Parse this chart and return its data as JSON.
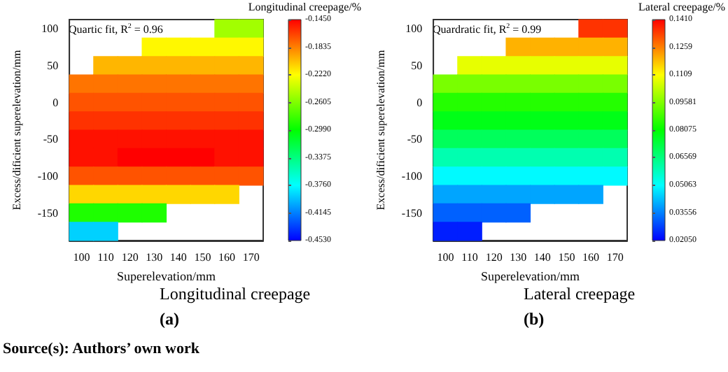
{
  "chart_data": [
    {
      "type": "heatmap",
      "title": "Longitudinal creepage",
      "subtitle": "(a)",
      "xlabel": "Superelevation/mm",
      "ylabel": "Excess/dificient superelevation/mm",
      "clabel": "Longitudinal creepage/%",
      "annotations": [
        "Quartic fit, R$^{2}$ = 0.96",
        "Source(s): Authors’ own work"
      ],
      "categories": [
        "100",
        "110",
        "120",
        "130",
        "140",
        "150",
        "160",
        "170"
      ],
      "y_categories": [
        "100",
        null,
        "50",
        null,
        "0",
        null,
        "-50",
        null,
        "-100",
        null,
        "-150",
        null
      ],
      "cells": [
        [
          null,
          null,
          null,
          null,
          null,
          null,
          -0.25,
          -0.25
        ],
        [
          null,
          null,
          null,
          -0.22,
          -0.22,
          -0.22,
          -0.22,
          -0.22
        ],
        [
          null,
          -0.2,
          -0.2,
          -0.2,
          -0.2,
          -0.2,
          -0.2,
          -0.2
        ],
        [
          -0.18,
          -0.18,
          -0.18,
          -0.18,
          -0.18,
          -0.18,
          -0.18,
          -0.18
        ],
        [
          -0.17,
          -0.17,
          -0.17,
          -0.17,
          -0.17,
          -0.17,
          -0.17,
          -0.17
        ],
        [
          -0.16,
          -0.16,
          -0.16,
          -0.16,
          -0.16,
          -0.16,
          -0.16,
          -0.16
        ],
        [
          -0.15,
          -0.15,
          -0.15,
          -0.15,
          -0.15,
          -0.15,
          -0.15,
          -0.15
        ],
        [
          -0.15,
          -0.15,
          -0.145,
          -0.145,
          -0.145,
          -0.145,
          -0.15,
          -0.15
        ],
        [
          -0.17,
          -0.17,
          -0.17,
          -0.17,
          -0.17,
          -0.17,
          -0.17,
          -0.17
        ],
        [
          -0.21,
          -0.21,
          -0.21,
          -0.21,
          -0.21,
          -0.21,
          -0.21,
          null
        ],
        [
          -0.29,
          -0.29,
          -0.29,
          -0.29,
          null,
          null,
          null,
          null
        ],
        [
          -0.39,
          -0.39,
          null,
          null,
          null,
          null,
          null,
          null
        ]
      ],
      "clim": [
        -0.453,
        -0.145
      ],
      "cticks": [
        {
          "value": -0.145,
          "label": "-0.1450"
        },
        -0.1835,
        {
          "value": -0.222,
          "label": "-0.2220"
        },
        -0.2605,
        {
          "value": -0.299,
          "label": "-0.2990"
        },
        -0.3375,
        {
          "value": -0.376,
          "label": "-0.3760"
        },
        -0.4145,
        {
          "value": -0.453,
          "label": "-0.4530"
        }
      ]
    },
    {
      "type": "heatmap",
      "title": "Lateral creepage",
      "subtitle": "(b)",
      "xlabel": "Superelevation/mm",
      "ylabel": "Excess/dificient superelevation/mm",
      "clabel": "Lateral creepage/%",
      "annotations": [
        "Quardratic fit, R$^{2}$ = 0.99"
      ],
      "categories": [
        "100",
        "110",
        "120",
        "130",
        "140",
        "150",
        "160",
        "170"
      ],
      "y_categories": [
        "100",
        null,
        "50",
        null,
        "0",
        null,
        "-50",
        null,
        "-100",
        null,
        "-150",
        null
      ],
      "cells": [
        [
          null,
          null,
          null,
          null,
          null,
          null,
          0.135,
          0.135
        ],
        [
          null,
          null,
          null,
          0.12,
          0.12,
          0.12,
          0.12,
          0.12
        ],
        [
          null,
          0.108,
          0.108,
          0.108,
          0.108,
          0.108,
          0.108,
          0.108
        ],
        [
          0.095,
          0.095,
          0.095,
          0.095,
          0.095,
          0.095,
          0.095,
          0.095
        ],
        [
          0.085,
          0.085,
          0.085,
          0.085,
          0.085,
          0.085,
          0.085,
          0.085
        ],
        [
          0.078,
          0.078,
          0.078,
          0.078,
          0.078,
          0.078,
          0.078,
          0.078
        ],
        [
          0.07,
          0.07,
          0.07,
          0.07,
          0.07,
          0.07,
          0.07,
          0.07
        ],
        [
          0.06,
          0.06,
          0.06,
          0.06,
          0.06,
          0.06,
          0.06,
          0.06
        ],
        [
          0.05,
          0.05,
          0.05,
          0.05,
          0.05,
          0.05,
          0.05,
          0.05
        ],
        [
          0.04,
          0.04,
          0.04,
          0.04,
          0.04,
          0.04,
          0.04,
          null
        ],
        [
          0.032,
          0.032,
          0.032,
          0.032,
          null,
          null,
          null,
          null
        ],
        [
          0.024,
          0.024,
          null,
          null,
          null,
          null,
          null,
          null
        ]
      ],
      "clim": [
        0.0205,
        0.141
      ],
      "cticks": [
        {
          "value": 0.141,
          "label": "0.1410"
        },
        0.1259,
        0.1109,
        0.09581,
        0.08075,
        0.06569,
        0.05063,
        0.03556,
        {
          "value": 0.0205,
          "label": "0.02050"
        }
      ]
    }
  ]
}
